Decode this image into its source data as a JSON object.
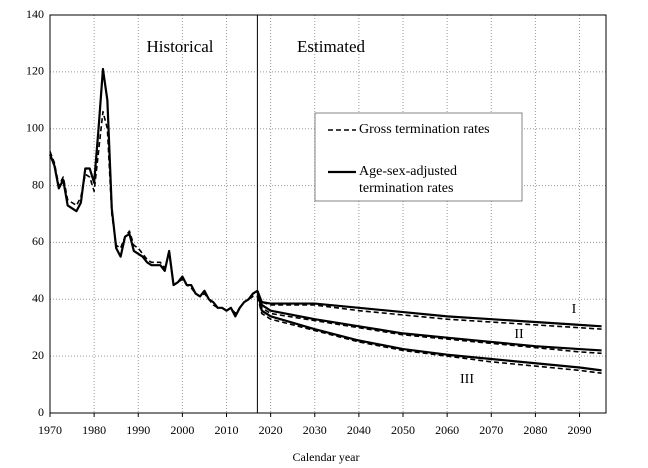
{
  "chart_data": {
    "type": "line",
    "x_label": "Calendar year",
    "xlim": [
      1970,
      2096
    ],
    "xticks": [
      1970,
      1980,
      1990,
      2000,
      2010,
      2020,
      2030,
      2040,
      2050,
      2060,
      2070,
      2080,
      2090
    ],
    "ylim": [
      0,
      140
    ],
    "yticks": [
      0,
      20,
      40,
      60,
      80,
      100,
      120,
      140
    ],
    "grid": true,
    "divider_x": 2017,
    "annotations": [
      "Historical",
      "Estimated",
      "I",
      "II",
      "III"
    ],
    "legend": [
      {
        "labels": [
          "Gross termination rates"
        ],
        "style": "dashed"
      },
      {
        "labels": [
          "Age-sex-adjusted",
          "termination rates"
        ],
        "style": "solid"
      }
    ],
    "series": [
      {
        "style": "dashed",
        "color": "#000000",
        "x": [
          1970,
          1971,
          1972,
          1973,
          1974,
          1975,
          1976,
          1977,
          1978,
          1979,
          1980,
          1981,
          1982,
          1983,
          1984,
          1985,
          1986,
          1987,
          1988,
          1989,
          1990,
          1991,
          1992,
          1993,
          1994,
          1995,
          1996,
          1997,
          1998,
          1999,
          2000,
          2001,
          2002,
          2003,
          2004,
          2005,
          2006,
          2007,
          2008,
          2009,
          2010,
          2011,
          2012,
          2013,
          2014,
          2015,
          2016,
          2017
        ],
        "values": [
          92,
          88,
          80,
          83,
          75,
          74,
          73,
          76,
          84,
          83,
          78,
          92,
          106,
          100,
          70,
          59,
          58,
          62,
          64,
          59,
          58,
          56,
          54,
          53,
          53,
          53,
          51,
          56,
          45,
          46,
          47,
          45,
          44,
          42,
          41,
          42,
          40,
          38,
          37,
          37,
          36,
          37,
          35,
          37,
          39,
          40,
          41,
          41
        ]
      },
      {
        "style": "solid",
        "color": "#000000",
        "x": [
          1970,
          1971,
          1972,
          1973,
          1974,
          1975,
          1976,
          1977,
          1978,
          1979,
          1980,
          1981,
          1982,
          1983,
          1984,
          1985,
          1986,
          1987,
          1988,
          1989,
          1990,
          1991,
          1992,
          1993,
          1994,
          1995,
          1996,
          1997,
          1998,
          1999,
          2000,
          2001,
          2002,
          2003,
          2004,
          2005,
          2006,
          2007,
          2008,
          2009,
          2010,
          2011,
          2012,
          2013,
          2014,
          2015,
          2016,
          2017
        ],
        "values": [
          91,
          87,
          79,
          82,
          73,
          72,
          71,
          74,
          86,
          86,
          81,
          100,
          121,
          110,
          72,
          58,
          55,
          62,
          63,
          57,
          56,
          55,
          53,
          52,
          52,
          52,
          50,
          57,
          45,
          46,
          48,
          45,
          45,
          42,
          41,
          43,
          40,
          39,
          37,
          37,
          36,
          37,
          34,
          37,
          39,
          40,
          42,
          43
        ]
      },
      {
        "style": "dashed",
        "color": "#000000",
        "x": [
          2017,
          2018,
          2020,
          2030,
          2040,
          2050,
          2060,
          2070,
          2080,
          2090,
          2095
        ],
        "values": [
          41,
          39,
          38,
          38,
          36,
          34.5,
          33,
          32,
          31,
          30,
          29.5
        ]
      },
      {
        "style": "solid",
        "color": "#000000",
        "x": [
          2017,
          2018,
          2020,
          2030,
          2040,
          2050,
          2060,
          2070,
          2080,
          2090,
          2095
        ],
        "values": [
          43,
          39,
          38.5,
          38.5,
          37,
          35.5,
          34,
          33,
          32,
          31,
          30.5
        ]
      },
      {
        "style": "dashed",
        "color": "#000000",
        "x": [
          2017,
          2018,
          2020,
          2030,
          2040,
          2050,
          2060,
          2070,
          2080,
          2090,
          2095
        ],
        "values": [
          41,
          37,
          35,
          32.5,
          30,
          27.5,
          26,
          24.5,
          23,
          21.5,
          21
        ]
      },
      {
        "style": "solid",
        "color": "#000000",
        "x": [
          2017,
          2018,
          2020,
          2030,
          2040,
          2050,
          2060,
          2070,
          2080,
          2090,
          2095
        ],
        "values": [
          43,
          38,
          36,
          33,
          30.5,
          28,
          26.5,
          25,
          23.5,
          22.5,
          22
        ]
      },
      {
        "style": "dashed",
        "color": "#000000",
        "x": [
          2017,
          2018,
          2020,
          2030,
          2040,
          2050,
          2060,
          2070,
          2080,
          2090,
          2095
        ],
        "values": [
          41,
          35,
          33,
          29,
          25,
          22,
          20,
          18,
          16.5,
          15,
          14
        ]
      },
      {
        "style": "solid",
        "color": "#000000",
        "x": [
          2017,
          2018,
          2020,
          2030,
          2040,
          2050,
          2060,
          2070,
          2080,
          2090,
          2095
        ],
        "values": [
          43,
          36,
          34,
          29.5,
          25.5,
          22.5,
          20.5,
          19,
          17.5,
          16,
          15
        ]
      }
    ]
  }
}
